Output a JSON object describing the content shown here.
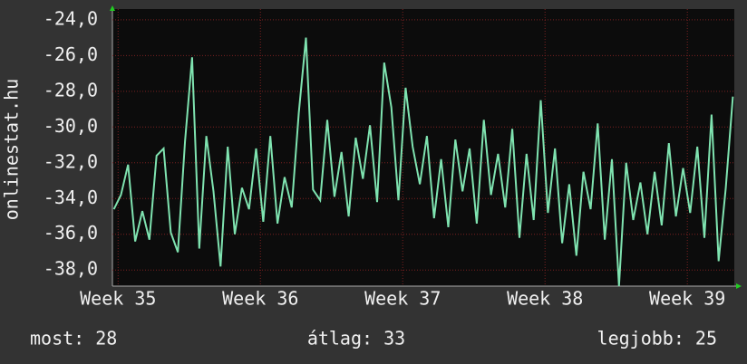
{
  "chart_data": {
    "type": "line",
    "y_label": "onlinestat.hu",
    "xlim": [
      34.96,
      39.33
    ],
    "xticks": [
      {
        "value": 35,
        "label": "Week 35"
      },
      {
        "value": 36,
        "label": "Week 36"
      },
      {
        "value": 37,
        "label": "Week 37"
      },
      {
        "value": 38,
        "label": "Week 38"
      },
      {
        "value": 39,
        "label": "Week 39"
      }
    ],
    "ylim": [
      -38.9,
      -23.4
    ],
    "yticks": [
      {
        "value": -24,
        "label": "-24,0"
      },
      {
        "value": -26,
        "label": "-26,0"
      },
      {
        "value": -28,
        "label": "-28,0"
      },
      {
        "value": -30,
        "label": "-30,0"
      },
      {
        "value": -32,
        "label": "-32,0"
      },
      {
        "value": -34,
        "label": "-34,0"
      },
      {
        "value": -36,
        "label": "-36,0"
      },
      {
        "value": -38,
        "label": "-38,0"
      }
    ],
    "grid": true,
    "x": [
      34.97,
      35.02,
      35.07,
      35.12,
      35.17,
      35.22,
      35.27,
      35.32,
      35.37,
      35.42,
      35.47,
      35.52,
      35.57,
      35.62,
      35.67,
      35.72,
      35.77,
      35.82,
      35.87,
      35.92,
      35.97,
      36.02,
      36.07,
      36.12,
      36.17,
      36.22,
      36.27,
      36.32,
      36.37,
      36.42,
      36.47,
      36.52,
      36.57,
      36.62,
      36.67,
      36.72,
      36.77,
      36.82,
      36.87,
      36.92,
      36.97,
      37.02,
      37.07,
      37.12,
      37.17,
      37.22,
      37.27,
      37.32,
      37.37,
      37.42,
      37.47,
      37.52,
      37.57,
      37.62,
      37.67,
      37.72,
      37.77,
      37.82,
      37.87,
      37.92,
      37.97,
      38.02,
      38.07,
      38.12,
      38.17,
      38.22,
      38.27,
      38.32,
      38.37,
      38.42,
      38.47,
      38.52,
      38.57,
      38.62,
      38.67,
      38.72,
      38.77,
      38.82,
      38.87,
      38.92,
      38.97,
      39.02,
      39.07,
      39.12,
      39.17,
      39.22,
      39.27,
      39.32
    ],
    "series": [
      {
        "color": "#7fe3b0",
        "values": [
          -34.6,
          -33.8,
          -32.1,
          -36.4,
          -34.7,
          -36.3,
          -31.6,
          -31.2,
          -35.9,
          -37.0,
          -30.8,
          -26.1,
          -36.8,
          -30.5,
          -33.6,
          -37.8,
          -31.1,
          -36.0,
          -33.4,
          -34.6,
          -31.2,
          -35.3,
          -30.5,
          -35.4,
          -32.8,
          -34.5,
          -29.2,
          -25.0,
          -33.5,
          -34.1,
          -29.6,
          -33.9,
          -31.4,
          -35.0,
          -30.6,
          -32.9,
          -29.9,
          -34.2,
          -26.4,
          -28.9,
          -34.1,
          -27.8,
          -31.1,
          -33.2,
          -30.5,
          -35.1,
          -31.8,
          -35.6,
          -30.7,
          -33.6,
          -31.2,
          -35.4,
          -29.6,
          -33.8,
          -31.5,
          -34.5,
          -30.1,
          -36.2,
          -31.5,
          -35.2,
          -28.5,
          -34.8,
          -31.2,
          -36.5,
          -33.2,
          -37.2,
          -32.5,
          -34.6,
          -29.8,
          -36.3,
          -31.8,
          -38.9,
          -32.0,
          -35.2,
          -33.1,
          -36.0,
          -32.5,
          -35.5,
          -30.9,
          -35.0,
          -32.3,
          -34.8,
          -31.1,
          -36.2,
          -29.3,
          -37.5,
          -33.4,
          -28.3
        ]
      }
    ],
    "footer": {
      "current": "most: 28",
      "average": "átlag: 33",
      "best": "legjobb: 25"
    }
  }
}
